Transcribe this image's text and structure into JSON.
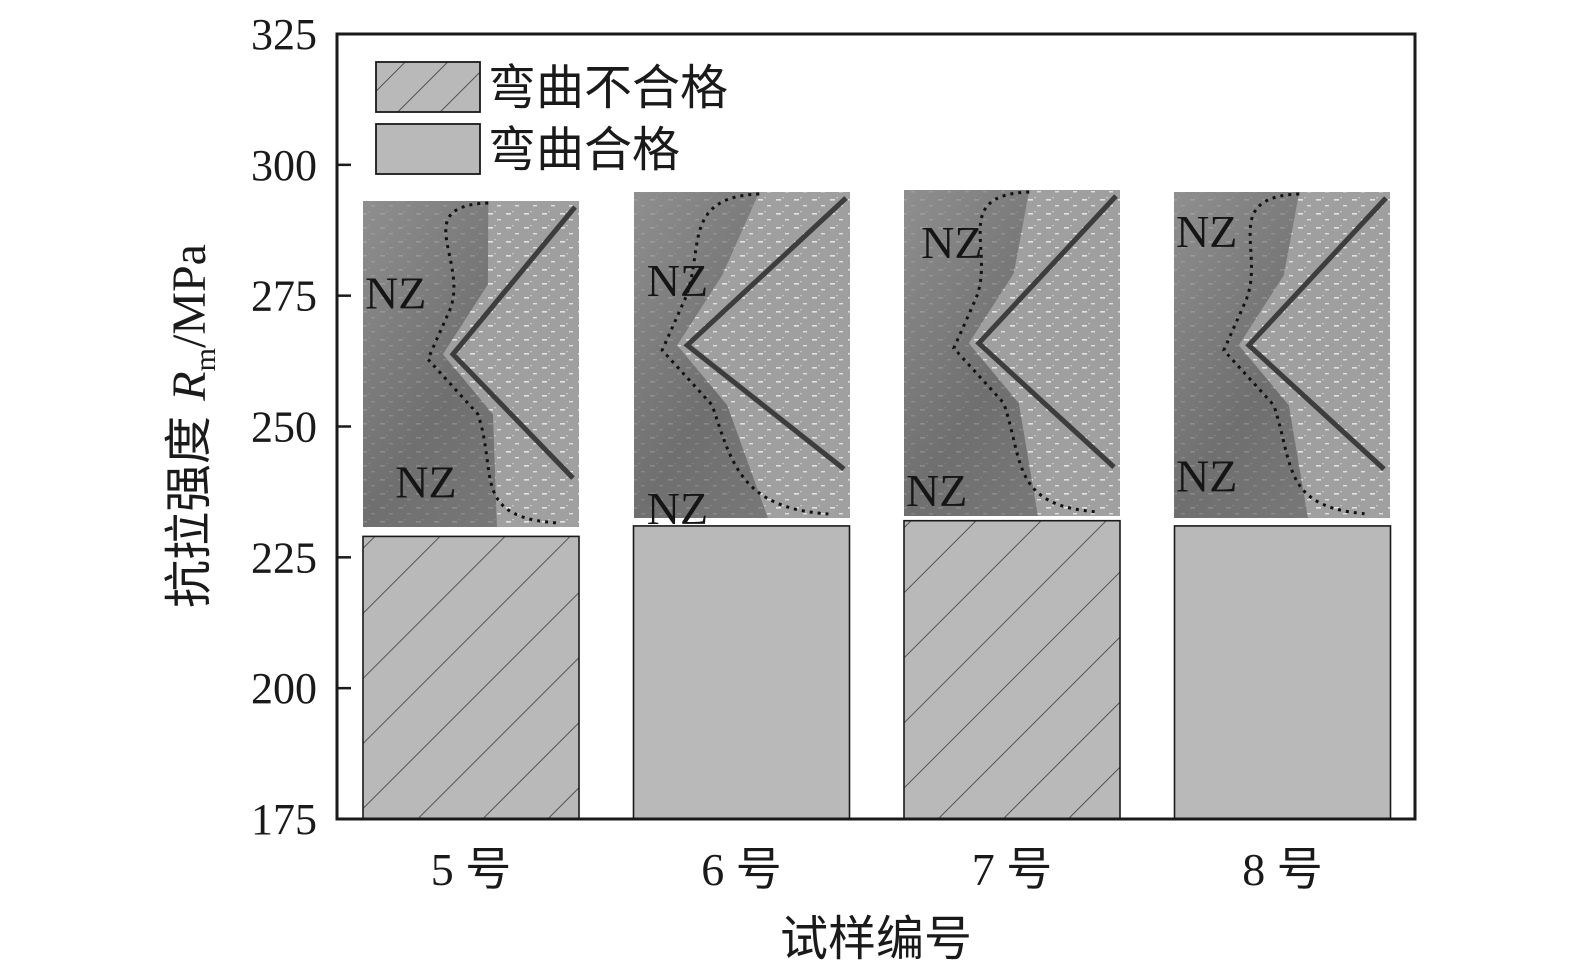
{
  "chart_data": {
    "type": "bar",
    "categories": [
      "5 号",
      "6 号",
      "7 号",
      "8 号"
    ],
    "values": [
      229,
      231,
      232,
      231
    ],
    "bend_result": [
      "弯曲不合格",
      "弯曲合格",
      "弯曲不合格",
      "弯曲合格"
    ],
    "xlabel": "试样编号",
    "ylabel": {
      "prefix": "抗拉强度 ",
      "symbol": "R",
      "subscript": "m",
      "unit": "/MPa"
    },
    "ylim": [
      175,
      325
    ],
    "yticks": [
      175,
      200,
      225,
      250,
      275,
      300,
      325
    ],
    "legend": {
      "placement": "top-left",
      "entries": [
        {
          "label": "弯曲不合格",
          "pattern": "hatched"
        },
        {
          "label": "弯曲合格",
          "pattern": "solid"
        }
      ]
    },
    "grid": false,
    "bar_color": "#b9b9b9",
    "insets": [
      {
        "category": "5 号",
        "labels": [
          "NZ",
          "NZ"
        ]
      },
      {
        "category": "6 号",
        "labels": [
          "NZ",
          "NZ"
        ]
      },
      {
        "category": "7 号",
        "labels": [
          "NZ",
          "NZ"
        ]
      },
      {
        "category": "8 号",
        "labels": [
          "NZ",
          "NZ"
        ]
      }
    ]
  }
}
